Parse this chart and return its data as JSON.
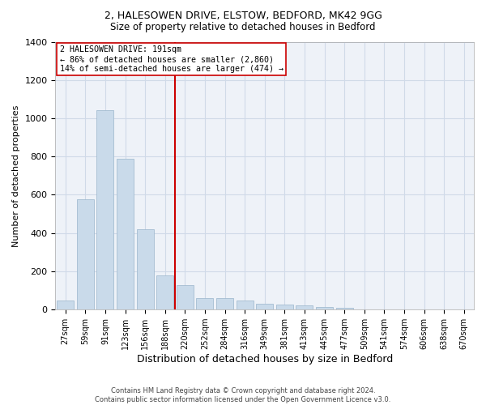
{
  "title": "2, HALESOWEN DRIVE, ELSTOW, BEDFORD, MK42 9GG",
  "subtitle": "Size of property relative to detached houses in Bedford",
  "xlabel": "Distribution of detached houses by size in Bedford",
  "ylabel": "Number of detached properties",
  "bar_color": "#c9daea",
  "bar_edgecolor": "#9ab5cc",
  "grid_color": "#d0dae8",
  "background_color": "#eef2f8",
  "categories": [
    "27sqm",
    "59sqm",
    "91sqm",
    "123sqm",
    "156sqm",
    "188sqm",
    "220sqm",
    "252sqm",
    "284sqm",
    "316sqm",
    "349sqm",
    "381sqm",
    "413sqm",
    "445sqm",
    "477sqm",
    "509sqm",
    "541sqm",
    "574sqm",
    "606sqm",
    "638sqm",
    "670sqm"
  ],
  "values": [
    47,
    575,
    1042,
    790,
    420,
    180,
    128,
    60,
    60,
    47,
    30,
    27,
    20,
    12,
    10,
    0,
    0,
    0,
    0,
    0,
    0
  ],
  "ylim": [
    0,
    1400
  ],
  "yticks": [
    0,
    200,
    400,
    600,
    800,
    1000,
    1200,
    1400
  ],
  "vline_x": 5.5,
  "vline_color": "#cc0000",
  "annotation_line1": "2 HALESOWEN DRIVE: 191sqm",
  "annotation_line2": "← 86% of detached houses are smaller (2,860)",
  "annotation_line3": "14% of semi-detached houses are larger (474) →",
  "annotation_box_color": "#ffffff",
  "annotation_box_edgecolor": "#cc0000",
  "footer_line1": "Contains HM Land Registry data © Crown copyright and database right 2024.",
  "footer_line2": "Contains public sector information licensed under the Open Government Licence v3.0."
}
